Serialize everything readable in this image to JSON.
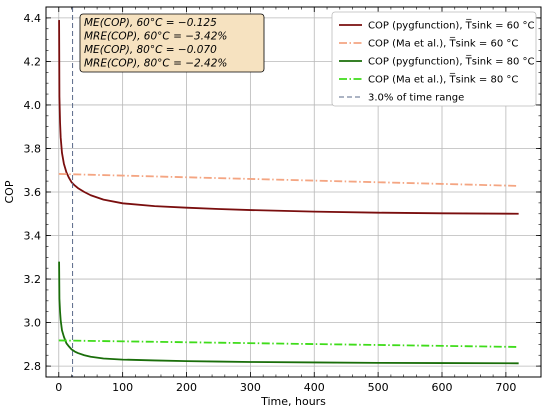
{
  "chart_data": {
    "type": "line",
    "xlabel": "Time, hours",
    "ylabel": "COP",
    "xlim": [
      -20,
      755
    ],
    "ylim": [
      2.75,
      4.45
    ],
    "x_ticks": [
      0,
      100,
      200,
      300,
      400,
      500,
      600,
      700
    ],
    "y_ticks": [
      2.8,
      3.0,
      3.2,
      3.4,
      3.6,
      3.8,
      4.0,
      4.2,
      4.4
    ],
    "grid": true,
    "legend_position": "top-right",
    "series": [
      {
        "name": "COP (pygfunction), T̅sink = 60 °C",
        "color": "#7a0e0e",
        "style": "solid",
        "x": [
          0.5,
          1,
          2,
          3,
          5,
          8,
          12,
          16,
          20,
          25,
          30,
          40,
          50,
          70,
          100,
          150,
          200,
          250,
          300,
          400,
          500,
          600,
          720
        ],
        "y": [
          4.39,
          4.04,
          3.92,
          3.85,
          3.78,
          3.73,
          3.69,
          3.665,
          3.645,
          3.63,
          3.618,
          3.6,
          3.585,
          3.565,
          3.548,
          3.535,
          3.528,
          3.522,
          3.517,
          3.51,
          3.505,
          3.502,
          3.5
        ]
      },
      {
        "name": "COP (Ma et al.), T̅sink = 60 °C",
        "color": "#f4a582",
        "style": "dashdot",
        "x": [
          0,
          720
        ],
        "y": [
          3.683,
          3.628
        ]
      },
      {
        "name": "COP (pygfunction), T̅sink = 80 °C",
        "color": "#1a6e0a",
        "style": "solid",
        "x": [
          0.5,
          1,
          2,
          3,
          5,
          8,
          12,
          16,
          20,
          25,
          30,
          40,
          50,
          70,
          100,
          150,
          200,
          250,
          300,
          400,
          500,
          600,
          720
        ],
        "y": [
          3.28,
          3.11,
          3.05,
          3.01,
          2.965,
          2.935,
          2.905,
          2.89,
          2.877,
          2.867,
          2.86,
          2.85,
          2.843,
          2.835,
          2.83,
          2.826,
          2.823,
          2.821,
          2.819,
          2.817,
          2.815,
          2.814,
          2.813
        ]
      },
      {
        "name": "COP (Ma et al.), T̅sink = 80 °C",
        "color": "#3fdc1a",
        "style": "dashdot",
        "x": [
          0,
          720
        ],
        "y": [
          2.918,
          2.888
        ]
      }
    ],
    "vline": {
      "name": "3.0% of time range",
      "x": 21.6,
      "color": "#5a6a8a",
      "style": "dashed"
    },
    "annotations": [
      "ME(COP), 60°C = −0.125",
      "MRE(COP), 60°C = −3.42%",
      "ME(COP), 80°C = −0.070",
      "MRE(COP), 80°C = −2.42%"
    ]
  }
}
